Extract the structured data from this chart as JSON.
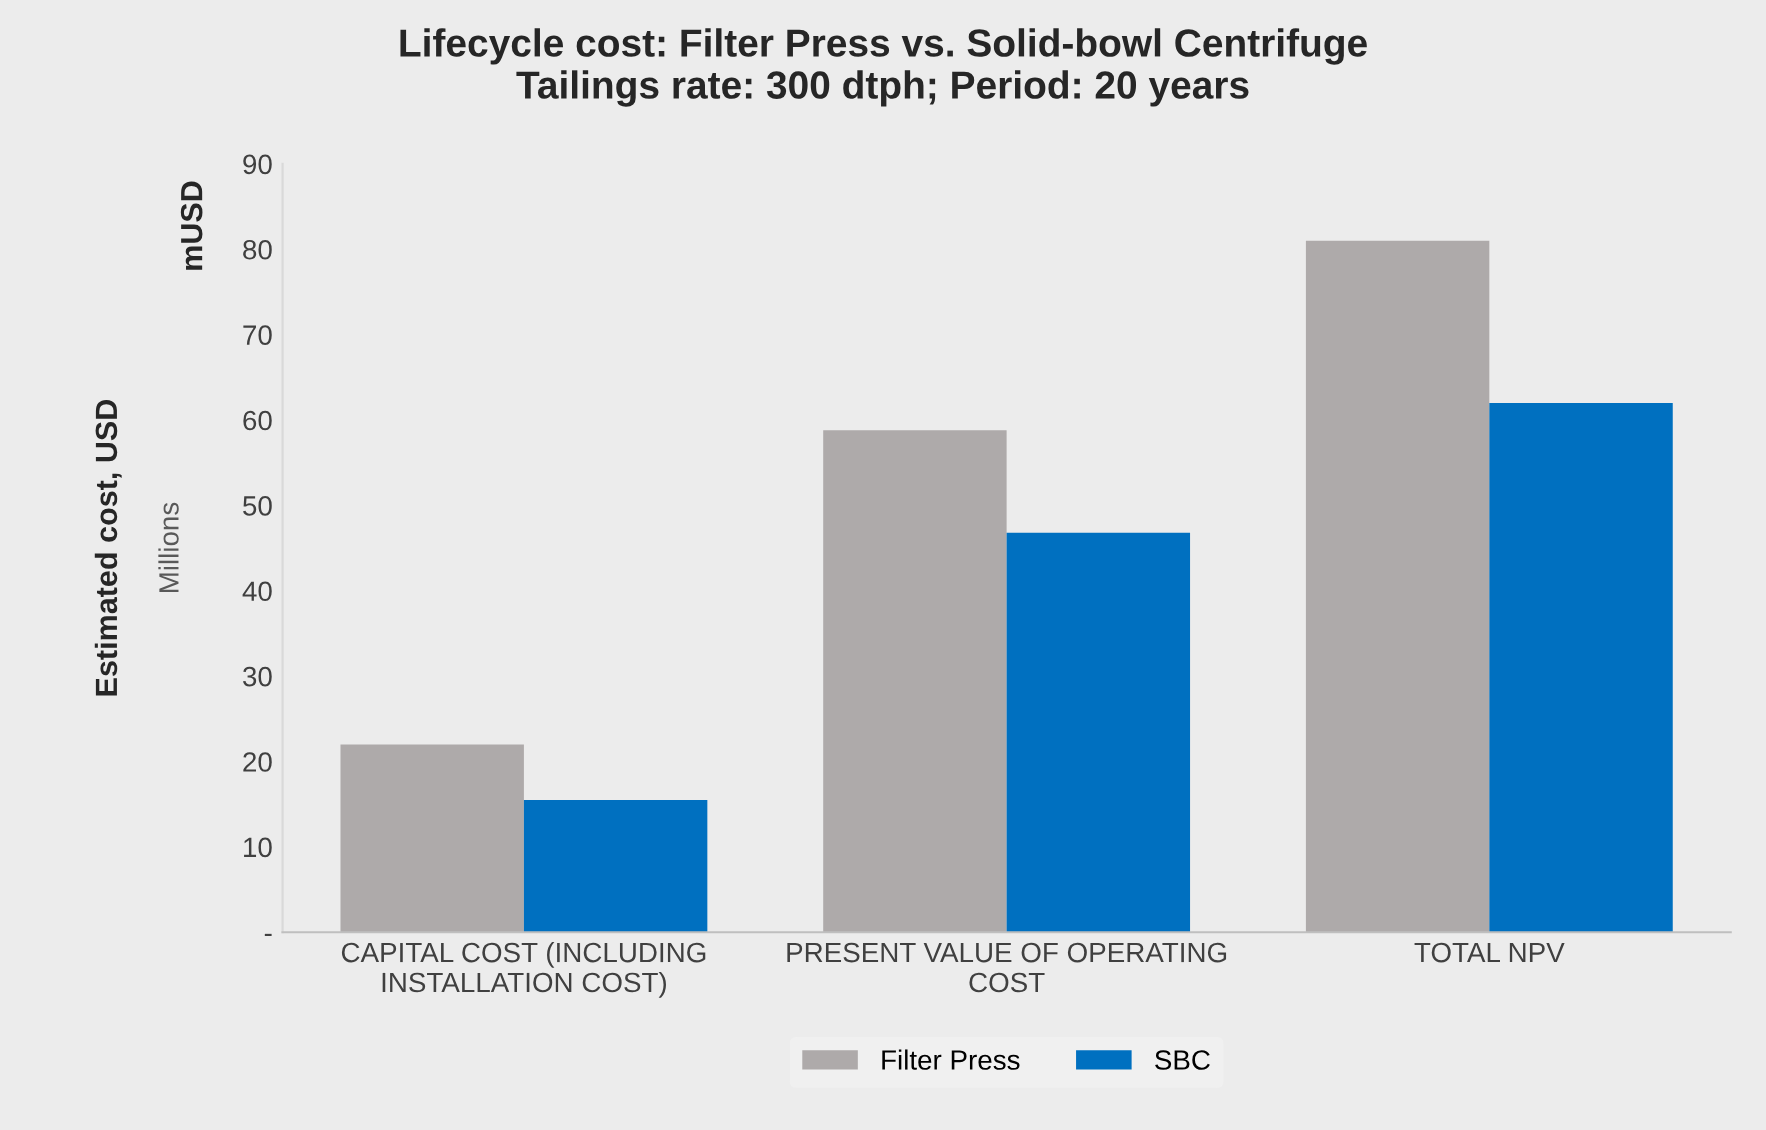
{
  "chart_data": {
    "type": "bar",
    "title": "Lifecycle cost: Filter Press vs. Solid-bowl Centrifuge\nTailings rate: 300 dtph; Period: 20 years",
    "ylabel": "Estimated cost, USD",
    "annotations": [
      "Millions",
      "mUSD"
    ],
    "categories": [
      "CAPITAL COST (INCLUDING\nINSTALLATION COST)",
      "PRESENT VALUE OF OPERATING\nCOST",
      "TOTAL NPV"
    ],
    "series": [
      {
        "name": "Filter Press",
        "color": "#aeaaaa",
        "values": [
          22,
          58.8,
          81
        ]
      },
      {
        "name": "SBC",
        "color": "#0070c0",
        "values": [
          15.5,
          46.8,
          62
        ]
      }
    ],
    "ylim": [
      0,
      90
    ],
    "yticks": [
      {
        "value": 0,
        "label": "-"
      },
      10,
      20,
      30,
      40,
      50,
      60,
      70,
      80,
      90
    ],
    "grid": false,
    "legend": "bottom"
  }
}
